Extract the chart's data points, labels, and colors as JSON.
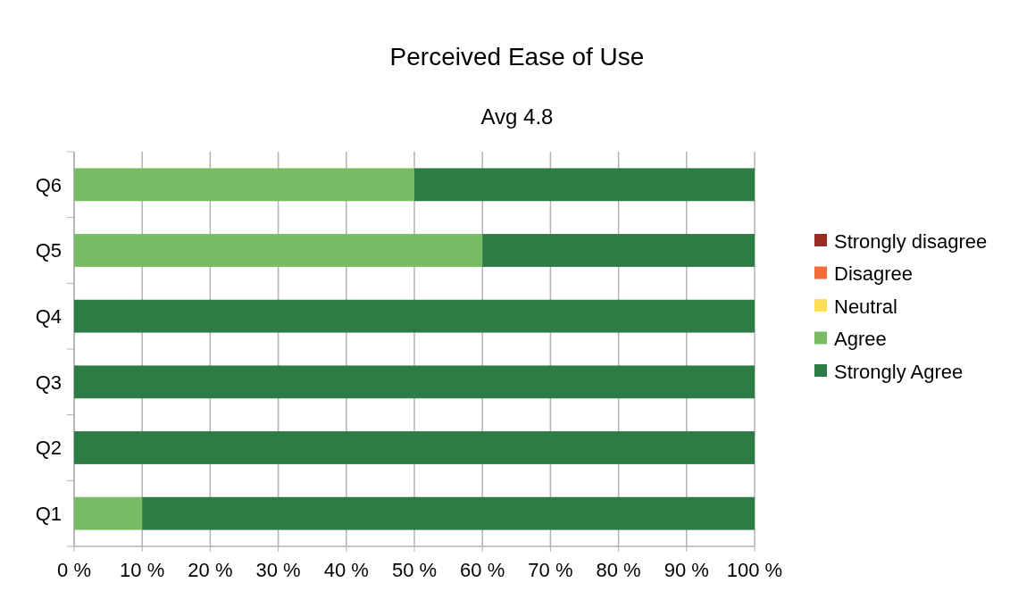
{
  "chart_data": {
    "type": "bar",
    "orientation": "horizontal",
    "stacked": true,
    "title": "Perceived Ease of Use",
    "subtitle": "Avg 4.8",
    "categories": [
      "Q6",
      "Q5",
      "Q4",
      "Q3",
      "Q2",
      "Q1"
    ],
    "series": [
      {
        "name": "Strongly disagree",
        "color": "#9b2b25",
        "values": [
          0,
          0,
          0,
          0,
          0,
          0
        ]
      },
      {
        "name": "Disagree",
        "color": "#f26b3a",
        "values": [
          0,
          0,
          0,
          0,
          0,
          0
        ]
      },
      {
        "name": "Neutral",
        "color": "#ffdd57",
        "values": [
          0,
          0,
          0,
          0,
          0,
          0
        ]
      },
      {
        "name": "Agree",
        "color": "#77bc65",
        "values": [
          50,
          60,
          0,
          0,
          0,
          10
        ]
      },
      {
        "name": "Strongly Agree",
        "color": "#2d7b45",
        "values": [
          50,
          40,
          100,
          100,
          100,
          90
        ]
      }
    ],
    "xlim": [
      0,
      100
    ],
    "xticks": [
      {
        "value": 0,
        "label": "0 %"
      },
      {
        "value": 10,
        "label": "10 %"
      },
      {
        "value": 20,
        "label": "20 %"
      },
      {
        "value": 30,
        "label": "30 %"
      },
      {
        "value": 40,
        "label": "40 %"
      },
      {
        "value": 50,
        "label": "50 %"
      },
      {
        "value": 60,
        "label": "60 %"
      },
      {
        "value": 70,
        "label": "70 %"
      },
      {
        "value": 80,
        "label": "80 %"
      },
      {
        "value": 90,
        "label": "90 %"
      },
      {
        "value": 100,
        "label": "100 %"
      }
    ],
    "grid": "x",
    "legend": "right"
  }
}
